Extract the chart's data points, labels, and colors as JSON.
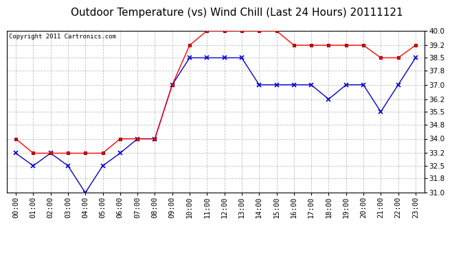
{
  "title": "Outdoor Temperature (vs) Wind Chill (Last 24 Hours) 20111121",
  "copyright": "Copyright 2011 Cartronics.com",
  "hours": [
    "00:00",
    "01:00",
    "02:00",
    "03:00",
    "04:00",
    "05:00",
    "06:00",
    "07:00",
    "08:00",
    "09:00",
    "10:00",
    "11:00",
    "12:00",
    "13:00",
    "14:00",
    "15:00",
    "16:00",
    "17:00",
    "18:00",
    "19:00",
    "20:00",
    "21:00",
    "22:00",
    "23:00"
  ],
  "outdoor_temp": [
    34.0,
    33.2,
    33.2,
    33.2,
    33.2,
    33.2,
    34.0,
    34.0,
    34.0,
    37.0,
    39.2,
    40.0,
    40.0,
    40.0,
    40.0,
    40.0,
    39.2,
    39.2,
    39.2,
    39.2,
    39.2,
    38.5,
    38.5,
    39.2
  ],
  "wind_chill": [
    33.2,
    32.5,
    33.2,
    32.5,
    31.0,
    32.5,
    33.2,
    34.0,
    34.0,
    37.0,
    38.5,
    38.5,
    38.5,
    38.5,
    37.0,
    37.0,
    37.0,
    37.0,
    36.2,
    37.0,
    37.0,
    35.5,
    37.0,
    38.5
  ],
  "temp_color": "#ff0000",
  "windchill_color": "#0000cc",
  "bg_color": "#ffffff",
  "grid_color": "#c0c0c0",
  "ylim_min": 31.0,
  "ylim_max": 40.0,
  "yticks": [
    31.0,
    31.8,
    32.5,
    33.2,
    34.0,
    34.8,
    35.5,
    36.2,
    37.0,
    37.8,
    38.5,
    39.2,
    40.0
  ],
  "title_fontsize": 11,
  "copyright_fontsize": 6.5,
  "tick_fontsize": 7.5
}
